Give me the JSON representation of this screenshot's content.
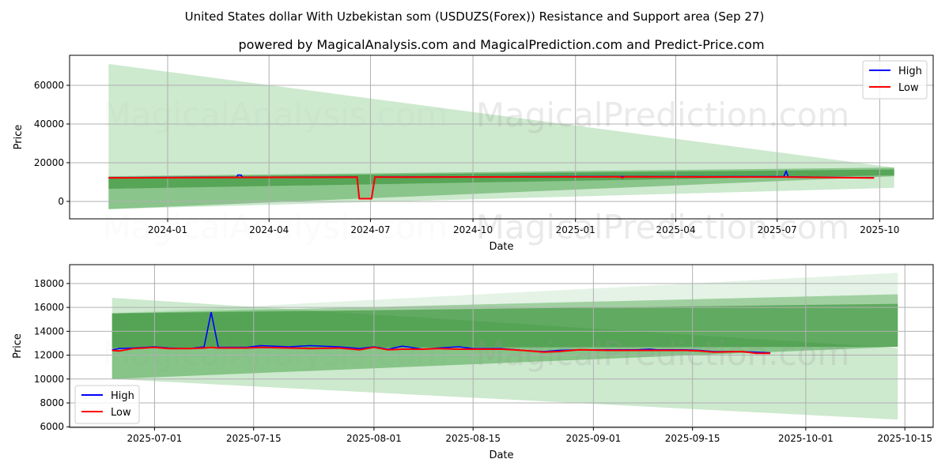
{
  "chart_data": [
    {
      "type": "line",
      "title": "United States dollar With Uzbekistan som (USDUZS(Forex)) Resistance and Support area (Sep 27)",
      "subtitle": "powered by MagicalAnalysis.com and MagicalPrediction.com and Predict-Price.com",
      "watermarks": [
        "MagicalAnalysis.com",
        "MagicalPrediction.com"
      ],
      "xlabel": "Date",
      "ylabel": "Price",
      "xlim": [
        "2023-10-05",
        "2025-11-18"
      ],
      "ylim": [
        -9000,
        75500
      ],
      "grid": true,
      "legend": "top-right",
      "xticks": [
        {
          "date": "2024-01-01",
          "label": "2024-01"
        },
        {
          "date": "2024-04-01",
          "label": "2024-04"
        },
        {
          "date": "2024-07-01",
          "label": "2024-07"
        },
        {
          "date": "2024-10-01",
          "label": "2024-10"
        },
        {
          "date": "2025-01-01",
          "label": "2025-01"
        },
        {
          "date": "2025-04-01",
          "label": "2025-04"
        },
        {
          "date": "2025-07-01",
          "label": "2025-07"
        },
        {
          "date": "2025-10-01",
          "label": "2025-10"
        }
      ],
      "yticks": [
        0,
        20000,
        40000,
        60000
      ],
      "bands": [
        {
          "start": "2023-11-09",
          "end": "2025-10-14",
          "start_range": [
            -4000,
            71000
          ],
          "end_range": [
            7000,
            17500
          ],
          "color": "#4caf50",
          "opacity": 0.28
        },
        {
          "start": "2023-11-09",
          "end": "2025-10-14",
          "start_range": [
            -4000,
            13000
          ],
          "end_range": [
            13000,
            17500
          ],
          "color": "#3a9a3a",
          "opacity": 0.45
        },
        {
          "start": "2023-11-09",
          "end": "2025-10-14",
          "start_range": [
            6500,
            12500
          ],
          "end_range": [
            13500,
            16500
          ],
          "color": "#2e8b2e",
          "opacity": 0.55
        }
      ],
      "series": [
        {
          "name": "High",
          "color": "#0000ff",
          "points": [
            [
              "2023-11-09",
              12300
            ],
            [
              "2024-03-03",
              12500
            ],
            [
              "2024-03-04",
              13700
            ],
            [
              "2024-03-07",
              13600
            ],
            [
              "2024-03-08",
              12500
            ],
            [
              "2024-06-19",
              12600
            ],
            [
              "2024-06-21",
              1500
            ],
            [
              "2024-07-02",
              1500
            ],
            [
              "2024-07-05",
              12600
            ],
            [
              "2025-02-10",
              12900
            ],
            [
              "2025-07-07",
              12800
            ],
            [
              "2025-07-09",
              15600
            ],
            [
              "2025-07-11",
              12700
            ],
            [
              "2025-09-26",
              12200
            ]
          ]
        },
        {
          "name": "Low",
          "color": "#ff0000",
          "points": [
            [
              "2023-11-09",
              12200
            ],
            [
              "2024-03-03",
              12400
            ],
            [
              "2024-06-19",
              12500
            ],
            [
              "2024-06-21",
              1400
            ],
            [
              "2024-07-02",
              1400
            ],
            [
              "2024-07-05",
              12500
            ],
            [
              "2025-02-10",
              12700
            ],
            [
              "2025-02-12",
              12200
            ],
            [
              "2025-02-14",
              12700
            ],
            [
              "2025-07-07",
              12600
            ],
            [
              "2025-09-26",
              12150
            ]
          ]
        }
      ]
    },
    {
      "type": "line",
      "xlabel": "Date",
      "ylabel": "Price",
      "xlim": [
        "2025-06-19",
        "2025-10-19"
      ],
      "ylim": [
        5950,
        19580
      ],
      "grid": true,
      "legend": "bottom-left",
      "xticks": [
        {
          "date": "2025-07-01",
          "label": "2025-07-01"
        },
        {
          "date": "2025-07-15",
          "label": "2025-07-15"
        },
        {
          "date": "2025-08-01",
          "label": "2025-08-01"
        },
        {
          "date": "2025-08-15",
          "label": "2025-08-15"
        },
        {
          "date": "2025-09-01",
          "label": "2025-09-01"
        },
        {
          "date": "2025-09-15",
          "label": "2025-09-15"
        },
        {
          "date": "2025-10-01",
          "label": "2025-10-01"
        },
        {
          "date": "2025-10-15",
          "label": "2025-10-15"
        }
      ],
      "yticks": [
        6000,
        8000,
        10000,
        12000,
        14000,
        16000,
        18000
      ],
      "bands": [
        {
          "start": "2025-06-25",
          "end": "2025-10-14",
          "start_range": [
            10000,
            15500
          ],
          "end_range": [
            12700,
            18900
          ],
          "color": "#4caf50",
          "opacity": 0.15
        },
        {
          "start": "2025-06-25",
          "end": "2025-10-14",
          "start_range": [
            10000,
            16800
          ],
          "end_range": [
            6600,
            12600
          ],
          "color": "#4caf50",
          "opacity": 0.28
        },
        {
          "start": "2025-06-25",
          "end": "2025-10-14",
          "start_range": [
            10000,
            15500
          ],
          "end_range": [
            12700,
            17100
          ],
          "color": "#3a9a3a",
          "opacity": 0.4
        },
        {
          "start": "2025-06-25",
          "end": "2025-10-14",
          "start_range": [
            12600,
            15500
          ],
          "end_range": [
            12700,
            16300
          ],
          "color": "#2e8b2e",
          "opacity": 0.55
        }
      ],
      "series": [
        {
          "name": "High",
          "color": "#0000ff",
          "points": [
            [
              "2025-06-25",
              12450
            ],
            [
              "2025-06-26",
              12550
            ],
            [
              "2025-06-28",
              12600
            ],
            [
              "2025-07-01",
              12700
            ],
            [
              "2025-07-03",
              12600
            ],
            [
              "2025-07-06",
              12550
            ],
            [
              "2025-07-08",
              12700
            ],
            [
              "2025-07-09",
              15600
            ],
            [
              "2025-07-10",
              12650
            ],
            [
              "2025-07-14",
              12650
            ],
            [
              "2025-07-16",
              12800
            ],
            [
              "2025-07-20",
              12700
            ],
            [
              "2025-07-23",
              12800
            ],
            [
              "2025-07-27",
              12700
            ],
            [
              "2025-07-30",
              12550
            ],
            [
              "2025-08-01",
              12700
            ],
            [
              "2025-08-03",
              12500
            ],
            [
              "2025-08-05",
              12750
            ],
            [
              "2025-08-08",
              12500
            ],
            [
              "2025-08-10",
              12600
            ],
            [
              "2025-08-13",
              12700
            ],
            [
              "2025-08-15",
              12550
            ],
            [
              "2025-08-19",
              12550
            ],
            [
              "2025-08-22",
              12400
            ],
            [
              "2025-08-25",
              12300
            ],
            [
              "2025-08-27",
              12400
            ],
            [
              "2025-08-30",
              12450
            ],
            [
              "2025-09-03",
              12450
            ],
            [
              "2025-09-07",
              12450
            ],
            [
              "2025-09-09",
              12500
            ],
            [
              "2025-09-10",
              12450
            ],
            [
              "2025-09-14",
              12450
            ],
            [
              "2025-09-16",
              12400
            ],
            [
              "2025-09-18",
              12300
            ],
            [
              "2025-09-22",
              12300
            ],
            [
              "2025-09-24",
              12250
            ],
            [
              "2025-09-26",
              12200
            ]
          ]
        },
        {
          "name": "Low",
          "color": "#ff0000",
          "points": [
            [
              "2025-06-25",
              12400
            ],
            [
              "2025-06-26",
              12350
            ],
            [
              "2025-06-28",
              12550
            ],
            [
              "2025-07-01",
              12650
            ],
            [
              "2025-07-03",
              12550
            ],
            [
              "2025-07-06",
              12550
            ],
            [
              "2025-07-08",
              12600
            ],
            [
              "2025-07-09",
              12650
            ],
            [
              "2025-07-10",
              12600
            ],
            [
              "2025-07-14",
              12600
            ],
            [
              "2025-07-16",
              12650
            ],
            [
              "2025-07-20",
              12600
            ],
            [
              "2025-07-23",
              12550
            ],
            [
              "2025-07-27",
              12600
            ],
            [
              "2025-07-30",
              12450
            ],
            [
              "2025-08-01",
              12650
            ],
            [
              "2025-08-03",
              12450
            ],
            [
              "2025-08-05",
              12500
            ],
            [
              "2025-08-08",
              12500
            ],
            [
              "2025-08-10",
              12550
            ],
            [
              "2025-08-13",
              12500
            ],
            [
              "2025-08-15",
              12500
            ],
            [
              "2025-08-19",
              12500
            ],
            [
              "2025-08-22",
              12400
            ],
            [
              "2025-08-25",
              12250
            ],
            [
              "2025-08-27",
              12300
            ],
            [
              "2025-08-30",
              12450
            ],
            [
              "2025-09-03",
              12400
            ],
            [
              "2025-09-07",
              12400
            ],
            [
              "2025-09-09",
              12400
            ],
            [
              "2025-09-10",
              12400
            ],
            [
              "2025-09-14",
              12400
            ],
            [
              "2025-09-16",
              12350
            ],
            [
              "2025-09-18",
              12250
            ],
            [
              "2025-09-22",
              12300
            ],
            [
              "2025-09-24",
              12150
            ],
            [
              "2025-09-26",
              12150
            ]
          ]
        }
      ]
    }
  ]
}
